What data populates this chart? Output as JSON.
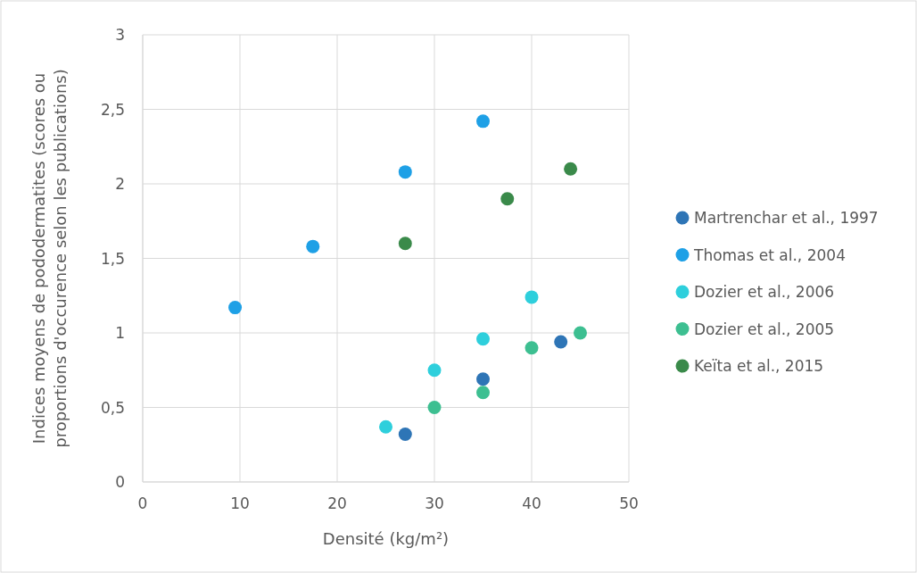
{
  "chart_data": {
    "type": "scatter",
    "xlabel": "Densité (kg/m²)",
    "ylabel": "Indices moyens de pododermatites (scores ou\nproportions d'occurence selon les publications)",
    "xlim": [
      0,
      50
    ],
    "xticks": [
      0,
      10,
      20,
      30,
      40,
      50
    ],
    "ylim": [
      0,
      3
    ],
    "yticks": [
      0,
      {
        "value": 0.5,
        "label": "0,5"
      },
      1,
      {
        "value": 1.5,
        "label": "1,5"
      },
      2,
      {
        "value": 2.5,
        "label": "2,5"
      },
      3
    ],
    "grid": true,
    "legend": "right",
    "marker": "circle",
    "series": [
      {
        "name": "Martrenchar et al., 1997",
        "color": "#2e75b6",
        "x": [
          27,
          35,
          43
        ],
        "values": [
          0.32,
          0.69,
          0.94
        ]
      },
      {
        "name": "Thomas et al., 2004",
        "color": "#1ea0e6",
        "x": [
          9.5,
          17.5,
          27,
          35
        ],
        "values": [
          1.17,
          1.58,
          2.08,
          2.42
        ]
      },
      {
        "name": "Dozier et al., 2006",
        "color": "#2ecfdc",
        "x": [
          25,
          30,
          35,
          40
        ],
        "values": [
          0.37,
          0.75,
          0.96,
          1.24
        ]
      },
      {
        "name": "Dozier et al., 2005",
        "color": "#3dbf91",
        "x": [
          30,
          35,
          40,
          45
        ],
        "values": [
          0.5,
          0.6,
          0.9,
          1.0
        ]
      },
      {
        "name": "Keïta et al., 2015",
        "color": "#3a8a4a",
        "x": [
          27,
          37.5,
          44
        ],
        "values": [
          1.6,
          1.9,
          2.1
        ]
      }
    ]
  }
}
